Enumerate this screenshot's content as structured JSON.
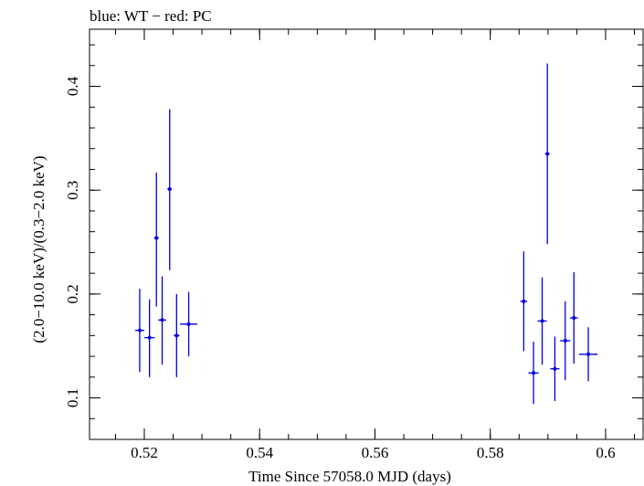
{
  "chart_data": {
    "type": "scatter",
    "title": "blue: WT − red: PC",
    "xlabel": "Time Since 57058.0 MJD (days)",
    "ylabel": "(2.0−10.0 keV)/(0.3−2.0 keV)",
    "xlim": [
      0.5105,
      0.6065
    ],
    "ylim": [
      0.06,
      0.455
    ],
    "xticks": [
      0.52,
      0.54,
      0.56,
      0.58,
      0.6
    ],
    "xtick_labels": [
      "0.52",
      "0.54",
      "0.56",
      "0.58",
      "0.6"
    ],
    "yticks": [
      0.1,
      0.2,
      0.3,
      0.4
    ],
    "ytick_labels": [
      "0.1",
      "0.2",
      "0.3",
      "0.4"
    ],
    "grid": false,
    "series": [
      {
        "color": "#0000dd",
        "points": [
          {
            "x": 0.5192,
            "xerr": 0.0008,
            "y": 0.165,
            "yerr_lo": 0.04,
            "yerr_hi": 0.04
          },
          {
            "x": 0.5209,
            "xerr": 0.0009,
            "y": 0.158,
            "yerr_lo": 0.038,
            "yerr_hi": 0.037
          },
          {
            "x": 0.5221,
            "xerr": 0.0004,
            "y": 0.254,
            "yerr_lo": 0.066,
            "yerr_hi": 0.063
          },
          {
            "x": 0.5231,
            "xerr": 0.0007,
            "y": 0.175,
            "yerr_lo": 0.043,
            "yerr_hi": 0.042
          },
          {
            "x": 0.5244,
            "xerr": 0.0004,
            "y": 0.301,
            "yerr_lo": 0.078,
            "yerr_hi": 0.077
          },
          {
            "x": 0.5256,
            "xerr": 0.0005,
            "y": 0.16,
            "yerr_lo": 0.04,
            "yerr_hi": 0.04
          },
          {
            "x": 0.5277,
            "xerr": 0.0015,
            "y": 0.171,
            "yerr_lo": 0.031,
            "yerr_hi": 0.031
          },
          {
            "x": 0.5858,
            "xerr": 0.0006,
            "y": 0.193,
            "yerr_lo": 0.048,
            "yerr_hi": 0.048
          },
          {
            "x": 0.5875,
            "xerr": 0.0009,
            "y": 0.124,
            "yerr_lo": 0.03,
            "yerr_hi": 0.03
          },
          {
            "x": 0.589,
            "xerr": 0.0008,
            "y": 0.174,
            "yerr_lo": 0.042,
            "yerr_hi": 0.042
          },
          {
            "x": 0.5899,
            "xerr": 0.0004,
            "y": 0.335,
            "yerr_lo": 0.087,
            "yerr_hi": 0.087
          },
          {
            "x": 0.5912,
            "xerr": 0.0008,
            "y": 0.128,
            "yerr_lo": 0.031,
            "yerr_hi": 0.031
          },
          {
            "x": 0.593,
            "xerr": 0.0009,
            "y": 0.155,
            "yerr_lo": 0.038,
            "yerr_hi": 0.038
          },
          {
            "x": 0.5945,
            "xerr": 0.0007,
            "y": 0.177,
            "yerr_lo": 0.044,
            "yerr_hi": 0.044
          },
          {
            "x": 0.597,
            "xerr": 0.0016,
            "y": 0.142,
            "yerr_lo": 0.026,
            "yerr_hi": 0.026
          }
        ]
      }
    ]
  }
}
